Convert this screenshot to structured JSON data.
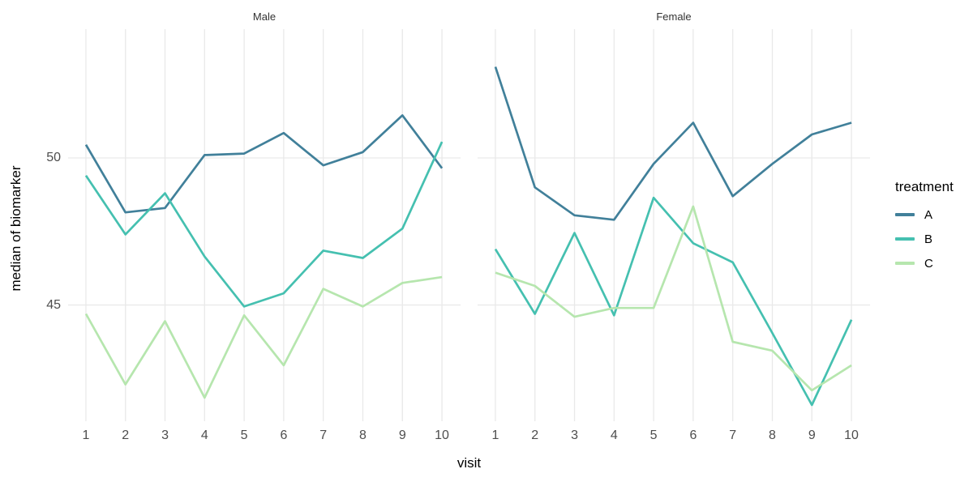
{
  "chart_data": {
    "type": "line",
    "title": "",
    "xlabel": "visit",
    "ylabel": "median of biomarker",
    "x": [
      1,
      2,
      3,
      4,
      5,
      6,
      7,
      8,
      9,
      10
    ],
    "xtick_labels": [
      "1",
      "2",
      "3",
      "4",
      "5",
      "6",
      "7",
      "8",
      "9",
      "10"
    ],
    "yticks": [
      {
        "value": 45,
        "label": "45"
      },
      {
        "value": 50,
        "label": "50"
      }
    ],
    "xlim": [
      0.55,
      10.47
    ],
    "ylim": [
      41.05,
      54.38
    ],
    "grid": "major gridlines only, light grey on white",
    "legend": {
      "title": "treatment",
      "position": "right",
      "entries": [
        {
          "label": "A",
          "color": "#41809a"
        },
        {
          "label": "B",
          "color": "#45c0b0"
        },
        {
          "label": "C",
          "color": "#b6e6ae"
        }
      ]
    },
    "facets": [
      {
        "label": "Male",
        "series": [
          {
            "name": "A",
            "color": "#41809a",
            "values": [
              50.45,
              48.15,
              48.3,
              50.1,
              50.15,
              50.85,
              49.75,
              50.2,
              51.45,
              49.65
            ]
          },
          {
            "name": "B",
            "color": "#45c0b0",
            "values": [
              49.4,
              47.4,
              48.8,
              46.65,
              44.95,
              45.4,
              46.85,
              46.6,
              47.6,
              50.55
            ]
          },
          {
            "name": "C",
            "color": "#b6e6ae",
            "values": [
              44.7,
              42.3,
              44.45,
              41.85,
              44.65,
              42.95,
              45.55,
              44.95,
              45.75,
              45.95
            ]
          }
        ]
      },
      {
        "label": "Female",
        "series": [
          {
            "name": "A",
            "color": "#41809a",
            "values": [
              53.1,
              49.0,
              48.05,
              47.9,
              49.8,
              51.2,
              48.7,
              49.8,
              50.8,
              51.2
            ]
          },
          {
            "name": "B",
            "color": "#45c0b0",
            "values": [
              46.9,
              44.7,
              47.45,
              44.65,
              48.65,
              47.1,
              46.45,
              44.05,
              41.6,
              44.5
            ]
          },
          {
            "name": "C",
            "color": "#b6e6ae",
            "values": [
              46.1,
              45.65,
              44.6,
              44.9,
              44.9,
              48.35,
              43.75,
              43.45,
              42.1,
              42.95
            ]
          }
        ]
      }
    ]
  },
  "theme": {
    "background": "#ffffff",
    "grid_color": "#e9e9e9",
    "tick_label_color": "#4d4d4d",
    "strip_label_color": "#333333",
    "axis_title_color": "#000000",
    "line_width": 2.7
  }
}
